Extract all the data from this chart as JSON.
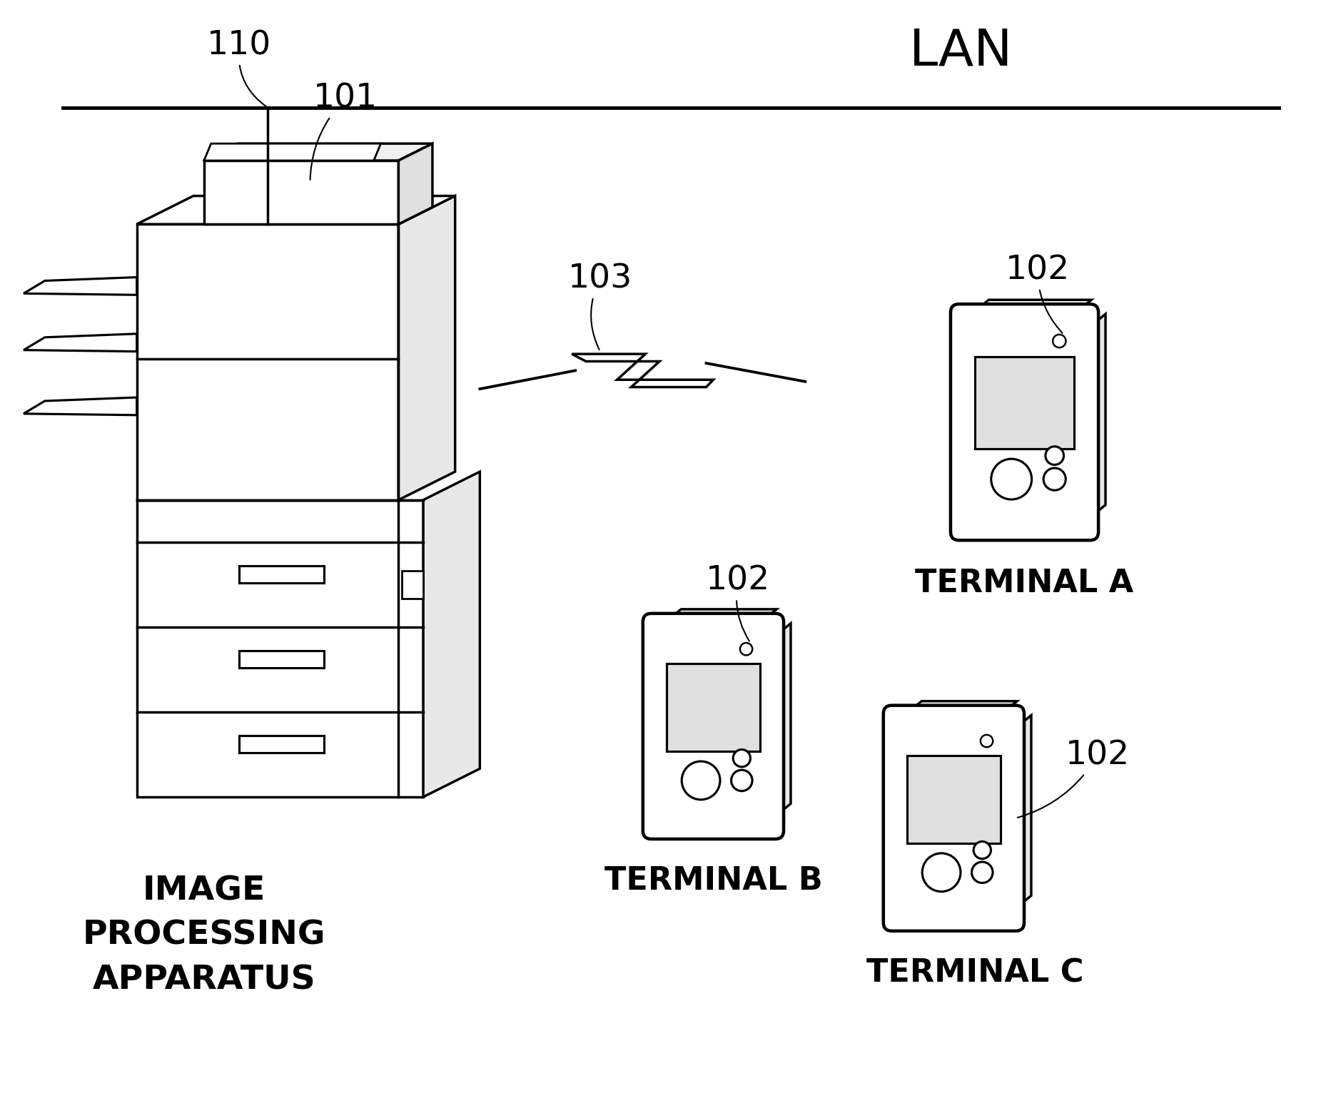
{
  "background_color": "#ffffff",
  "lan_label": "LAN",
  "ref_110": "110",
  "ref_101": "101",
  "ref_103": "103",
  "ref_102": "102",
  "terminal_a": "TERMINAL A",
  "terminal_b": "TERMINAL B",
  "terminal_c": "TERMINAL C",
  "apparatus_label": "IMAGE\nPROCESSING\nAPPARATUS",
  "line_color": "#000000",
  "fill_color": "#ffffff",
  "lw": 2.5
}
